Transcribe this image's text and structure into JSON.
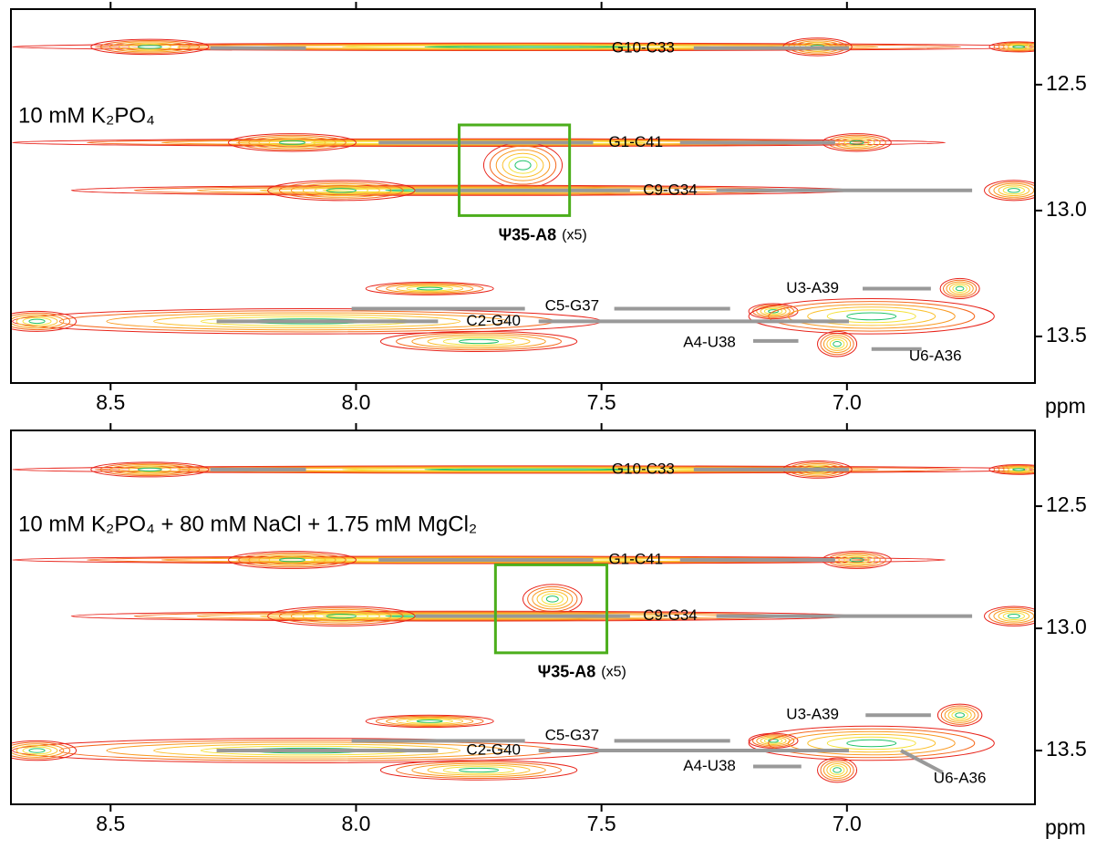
{
  "chart_data": [
    {
      "type": "contour",
      "condition": "10 mM K₂PO₄",
      "xlabel": "ppm",
      "xlim": [
        8.703,
        6.617
      ],
      "ylim": [
        12.2,
        13.685
      ],
      "xticks": [
        8.5,
        {
          "value": 8,
          "label": "8.0"
        },
        7.5,
        {
          "value": 7,
          "label": "7.0"
        }
      ],
      "yticks": [
        12.5,
        {
          "value": 13,
          "label": "13.0"
        },
        13.5
      ],
      "peaks": [
        {
          "x": 7.65,
          "y": 12.35,
          "dx": 1.05,
          "dy": 0.015
        },
        {
          "x": 8.42,
          "y": 12.35,
          "dx": 0.12,
          "dy": 0.03
        },
        {
          "x": 7.06,
          "y": 12.35,
          "dx": 0.07,
          "dy": 0.035
        },
        {
          "x": 6.65,
          "y": 12.35,
          "dx": 0.06,
          "dy": 0.02
        },
        {
          "x": 7.75,
          "y": 12.73,
          "dx": 0.95,
          "dy": 0.015
        },
        {
          "x": 8.13,
          "y": 12.73,
          "dx": 0.13,
          "dy": 0.035
        },
        {
          "x": 6.98,
          "y": 12.73,
          "dx": 0.07,
          "dy": 0.035
        },
        {
          "x": 7.66,
          "y": 12.82,
          "dx": 0.08,
          "dy": 0.09
        },
        {
          "x": 7.78,
          "y": 12.92,
          "dx": 0.8,
          "dy": 0.02
        },
        {
          "x": 8.03,
          "y": 12.92,
          "dx": 0.15,
          "dy": 0.04
        },
        {
          "x": 6.66,
          "y": 12.92,
          "dx": 0.06,
          "dy": 0.04
        },
        {
          "x": 8.1,
          "y": 13.44,
          "dx": 0.6,
          "dy": 0.05
        },
        {
          "x": 8.65,
          "y": 13.44,
          "dx": 0.08,
          "dy": 0.04
        },
        {
          "x": 7.85,
          "y": 13.31,
          "dx": 0.13,
          "dy": 0.025
        },
        {
          "x": 7.75,
          "y": 13.52,
          "dx": 0.2,
          "dy": 0.04
        },
        {
          "x": 7.02,
          "y": 13.53,
          "dx": 0.04,
          "dy": 0.05
        },
        {
          "x": 6.77,
          "y": 13.31,
          "dx": 0.04,
          "dy": 0.04
        },
        {
          "x": 7.15,
          "y": 13.4,
          "dx": 0.05,
          "dy": 0.03
        },
        {
          "x": 6.95,
          "y": 13.42,
          "dx": 0.25,
          "dy": 0.07
        }
      ],
      "annotations": [
        {
          "text": "G10-C33",
          "x": 7.415,
          "y": 12.355,
          "lines": [
            [
              8.297,
              12.355,
              8.102,
              12.355
            ],
            [
              7.312,
              12.355,
              6.996,
              12.355
            ]
          ]
        },
        {
          "text": "G1-C41",
          "x": 7.43,
          "y": 12.73,
          "lines": [
            [
              7.954,
              12.73,
              7.517,
              12.73
            ],
            [
              7.34,
              12.73,
              7.024,
              12.73
            ]
          ]
        },
        {
          "text": "C9-G34",
          "x": 7.36,
          "y": 12.92,
          "lines": [
            [
              7.879,
              12.92,
              7.442,
              12.92
            ],
            [
              7.266,
              12.92,
              6.745,
              12.92
            ]
          ]
        },
        {
          "text": "U3-A39",
          "x": 7.07,
          "y": 13.31,
          "lines": [
            [
              6.968,
              13.31,
              6.829,
              13.31
            ]
          ]
        },
        {
          "text": "C5-G37",
          "x": 7.56,
          "y": 13.38,
          "lines": [
            [
              8.009,
              13.39,
              7.656,
              13.39
            ],
            [
              7.474,
              13.39,
              7.238,
              13.39
            ]
          ]
        },
        {
          "text": "C2-G40",
          "x": 7.72,
          "y": 13.44,
          "lines": [
            [
              8.284,
              13.44,
              7.833,
              13.44
            ],
            [
              7.628,
              13.44,
              6.996,
              13.44
            ]
          ]
        },
        {
          "text": "A4-U38",
          "x": 7.28,
          "y": 13.525,
          "lines": [
            [
              7.191,
              13.518,
              7.099,
              13.518
            ]
          ]
        },
        {
          "text": "U6-A36",
          "x": 6.82,
          "y": 13.58,
          "lines": [
            [
              6.95,
              13.55,
              6.848,
              13.55
            ]
          ]
        }
      ],
      "box": {
        "x": [
          7.79,
          7.565
        ],
        "y": [
          12.66,
          13.02
        ],
        "label": "Ψ35-A8",
        "note": "(x5)",
        "label_x": 7.71,
        "label_y": 13.1
      }
    },
    {
      "type": "contour",
      "condition": "10 mM K₂PO₄ + 80 mM NaCl + 1.75 mM MgCl₂",
      "xlabel": "ppm",
      "xlim": [
        8.703,
        6.617
      ],
      "ylim": [
        12.19,
        13.72
      ],
      "xticks": [
        8.5,
        {
          "value": 8,
          "label": "8.0"
        },
        7.5,
        {
          "value": 7,
          "label": "7.0"
        }
      ],
      "yticks": [
        12.5,
        {
          "value": 13,
          "label": "13.0"
        },
        13.5
      ],
      "peaks": [
        {
          "x": 7.65,
          "y": 12.35,
          "dx": 1.05,
          "dy": 0.015
        },
        {
          "x": 8.42,
          "y": 12.35,
          "dx": 0.12,
          "dy": 0.03
        },
        {
          "x": 7.06,
          "y": 12.35,
          "dx": 0.07,
          "dy": 0.035
        },
        {
          "x": 6.65,
          "y": 12.35,
          "dx": 0.06,
          "dy": 0.02
        },
        {
          "x": 7.75,
          "y": 12.72,
          "dx": 0.95,
          "dy": 0.015
        },
        {
          "x": 8.13,
          "y": 12.72,
          "dx": 0.13,
          "dy": 0.035
        },
        {
          "x": 6.98,
          "y": 12.72,
          "dx": 0.07,
          "dy": 0.035
        },
        {
          "x": 7.6,
          "y": 12.88,
          "dx": 0.06,
          "dy": 0.06
        },
        {
          "x": 7.78,
          "y": 12.95,
          "dx": 0.8,
          "dy": 0.02
        },
        {
          "x": 8.03,
          "y": 12.95,
          "dx": 0.15,
          "dy": 0.04
        },
        {
          "x": 6.66,
          "y": 12.95,
          "dx": 0.06,
          "dy": 0.04
        },
        {
          "x": 8.1,
          "y": 13.5,
          "dx": 0.6,
          "dy": 0.05
        },
        {
          "x": 8.65,
          "y": 13.5,
          "dx": 0.08,
          "dy": 0.04
        },
        {
          "x": 7.85,
          "y": 13.38,
          "dx": 0.13,
          "dy": 0.025
        },
        {
          "x": 7.75,
          "y": 13.58,
          "dx": 0.2,
          "dy": 0.04
        },
        {
          "x": 7.02,
          "y": 13.58,
          "dx": 0.04,
          "dy": 0.05
        },
        {
          "x": 6.77,
          "y": 13.355,
          "dx": 0.045,
          "dy": 0.045
        },
        {
          "x": 7.15,
          "y": 13.46,
          "dx": 0.05,
          "dy": 0.03
        },
        {
          "x": 6.95,
          "y": 13.47,
          "dx": 0.25,
          "dy": 0.07
        }
      ],
      "annotations": [
        {
          "text": "G10-C33",
          "x": 7.415,
          "y": 12.35,
          "lines": [
            [
              8.297,
              12.35,
              8.102,
              12.35
            ],
            [
              7.312,
              12.35,
              6.996,
              12.35
            ]
          ]
        },
        {
          "text": "G1-C41",
          "x": 7.43,
          "y": 12.72,
          "lines": [
            [
              7.954,
              12.72,
              7.517,
              12.72
            ],
            [
              7.34,
              12.72,
              7.024,
              12.72
            ]
          ]
        },
        {
          "text": "C9-G34",
          "x": 7.36,
          "y": 12.95,
          "lines": [
            [
              7.879,
              12.95,
              7.442,
              12.95
            ],
            [
              7.266,
              12.95,
              6.745,
              12.95
            ]
          ]
        },
        {
          "text": "U3-A39",
          "x": 7.07,
          "y": 13.355,
          "lines": [
            [
              6.962,
              13.355,
              6.829,
              13.355
            ]
          ]
        },
        {
          "text": "C5-G37",
          "x": 7.56,
          "y": 13.44,
          "lines": [
            [
              8.009,
              13.46,
              7.656,
              13.46
            ],
            [
              7.474,
              13.46,
              7.238,
              13.46
            ]
          ]
        },
        {
          "text": "C2-G40",
          "x": 7.72,
          "y": 13.5,
          "lines": [
            [
              8.284,
              13.5,
              7.833,
              13.5
            ],
            [
              7.628,
              13.5,
              6.996,
              13.5
            ]
          ]
        },
        {
          "text": "A4-U38",
          "x": 7.28,
          "y": 13.565,
          "lines": [
            [
              7.191,
              13.565,
              7.093,
              13.565
            ]
          ]
        },
        {
          "text": "U6-A36",
          "x": 6.77,
          "y": 13.615,
          "lines": [
            [
              6.89,
              13.5,
              6.805,
              13.59
            ]
          ]
        }
      ],
      "box": {
        "x": [
          7.716,
          7.489
        ],
        "y": [
          12.74,
          13.1
        ],
        "label": "Ψ35-A8",
        "note": "(x5)",
        "label_x": 7.63,
        "label_y": 13.18
      }
    }
  ]
}
